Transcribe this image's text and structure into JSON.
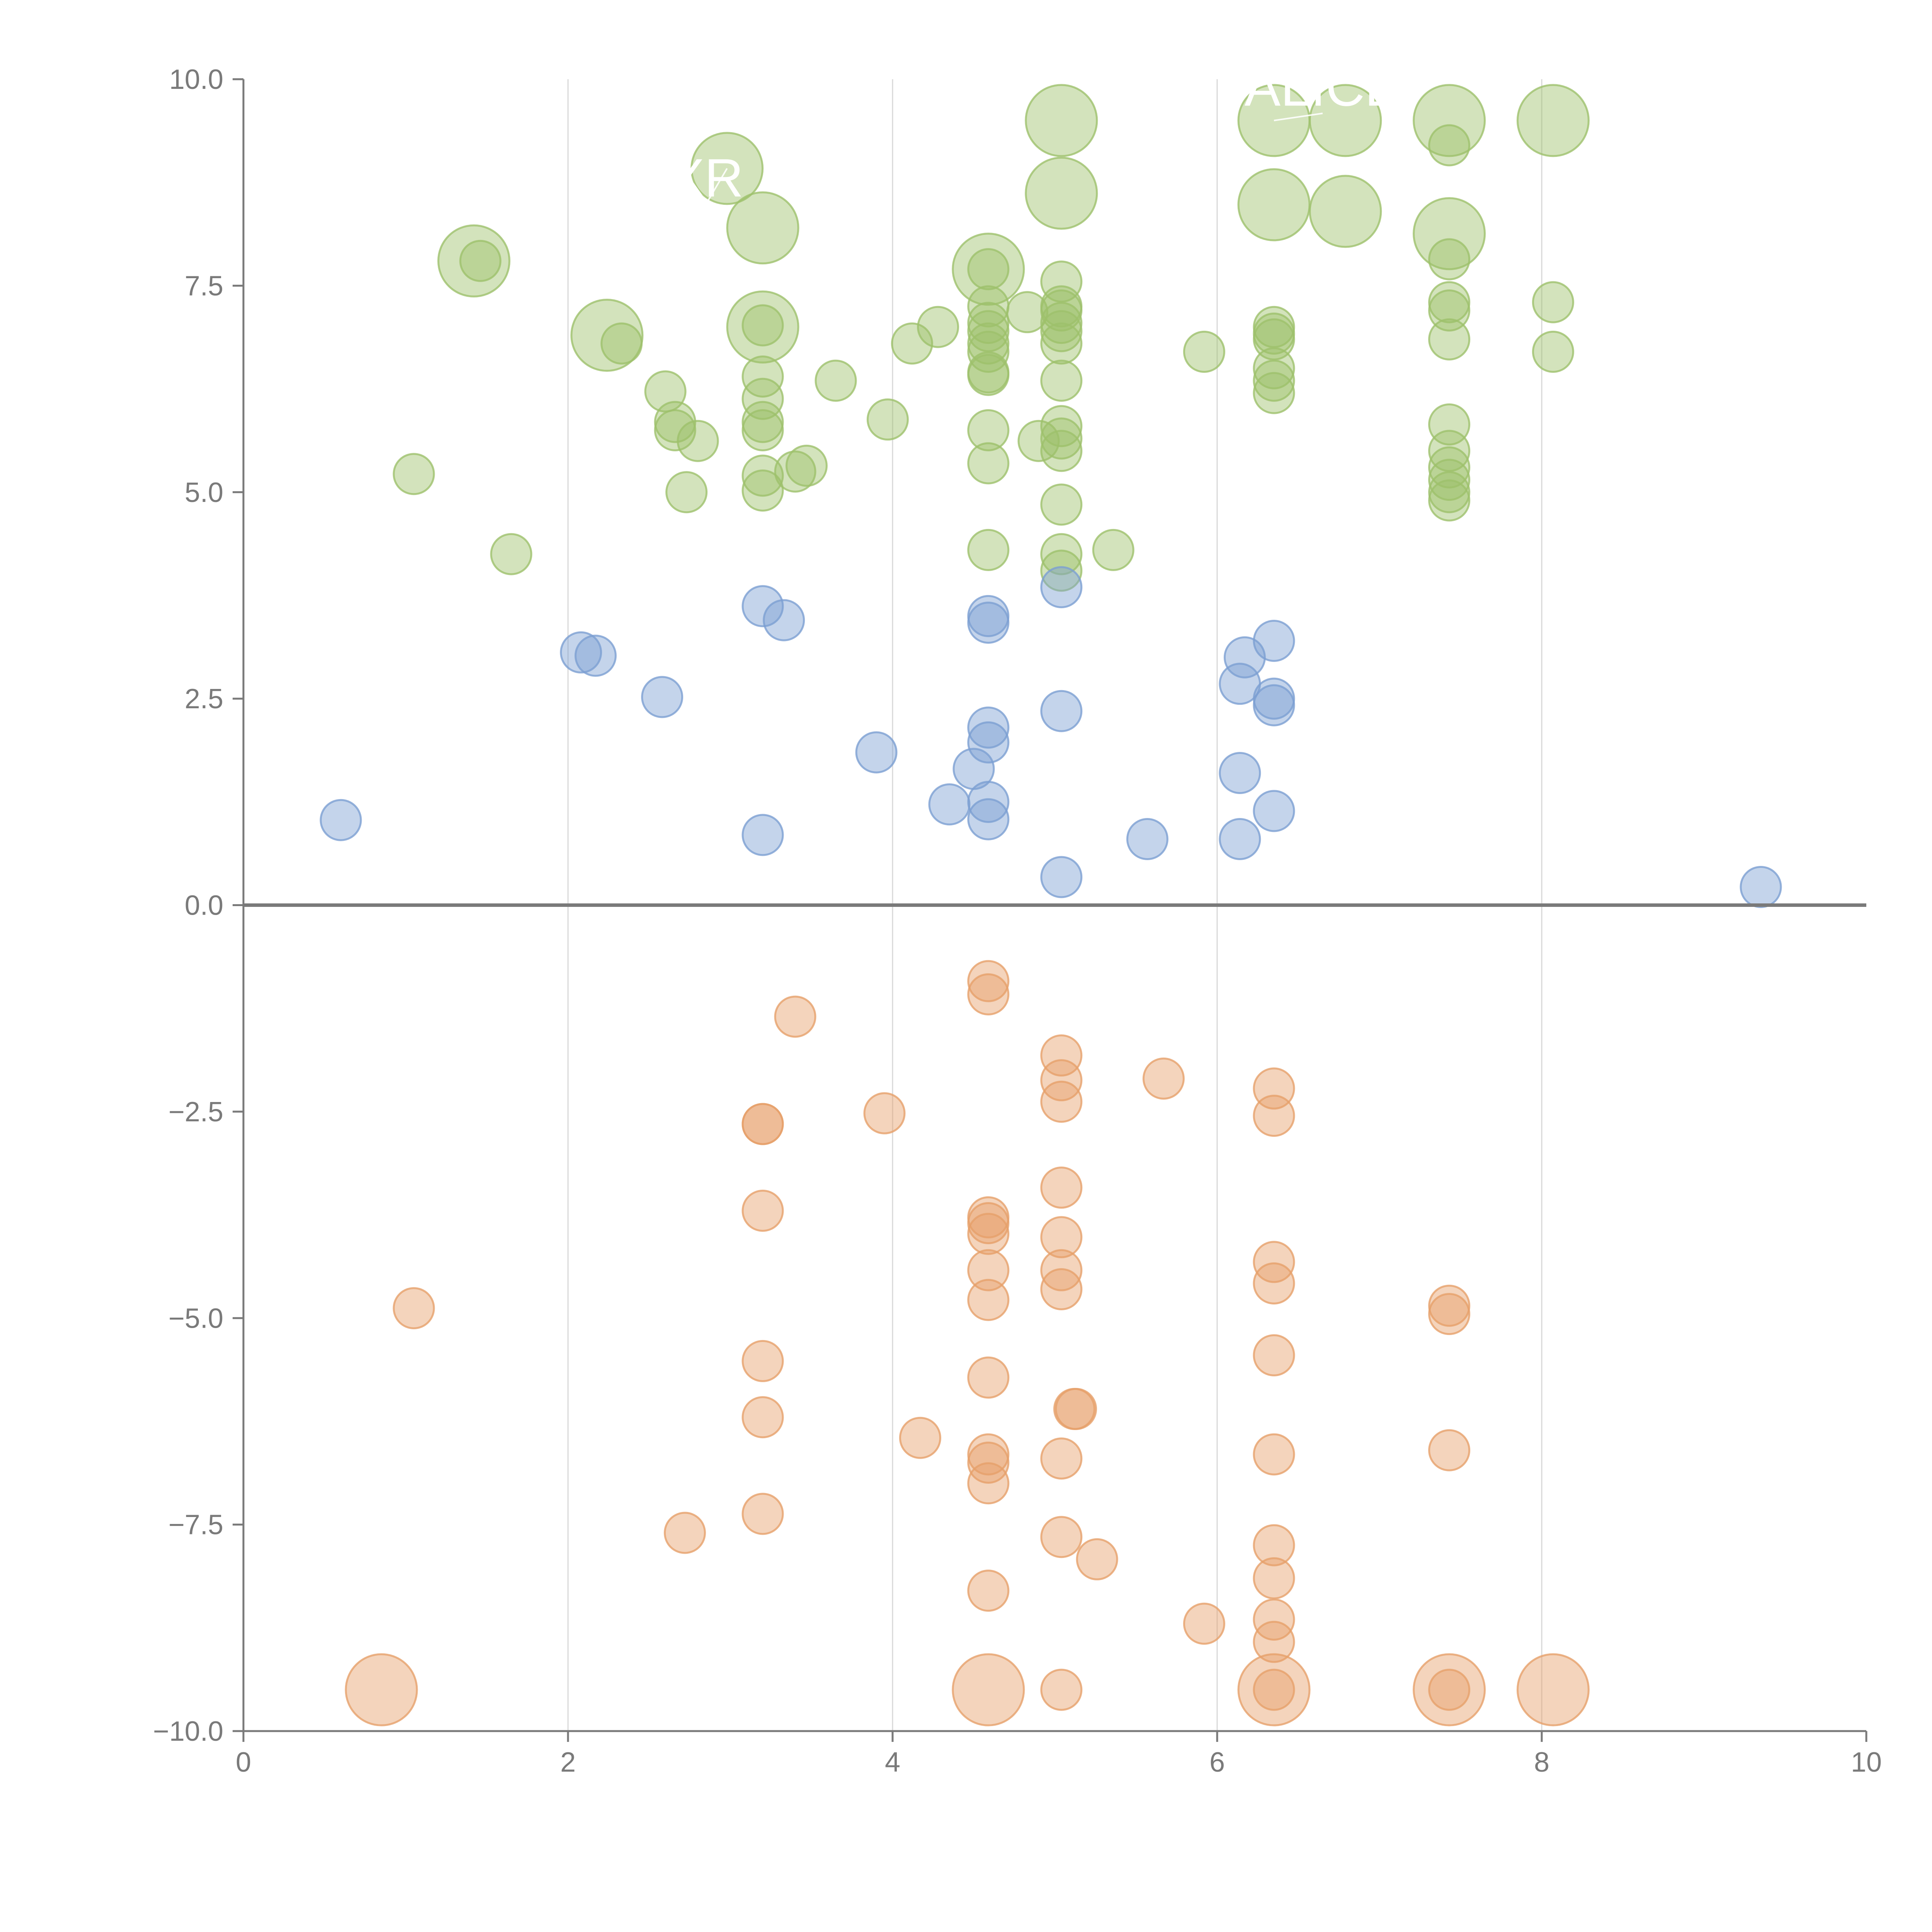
{
  "chart_data": {
    "type": "scatter",
    "title": "",
    "xlabel": "",
    "ylabel": "",
    "xlim": [
      0,
      10
    ],
    "ylim": [
      -10,
      10
    ],
    "x_ticks": [
      "0",
      "2",
      "4",
      "6",
      "8",
      "10"
    ],
    "y_ticks": [
      "−10.0",
      "−7.5",
      "−5.0",
      "−2.5",
      "0.0",
      "2.5",
      "5.0",
      "7.5",
      "10.0"
    ],
    "grid": "vertical",
    "colors": {
      "green": "#9dc16b",
      "blue": "#7c9fd2",
      "orange": "#e6a06a",
      "axis": "#7a7a7a"
    },
    "series": [
      {
        "name": "green",
        "color": "#9dc16b",
        "points": [
          [
            1.05,
            5.22,
            1
          ],
          [
            1.42,
            7.8,
            3
          ],
          [
            1.46,
            7.8,
            1
          ],
          [
            1.65,
            4.25,
            1
          ],
          [
            2.24,
            6.9,
            3
          ],
          [
            2.33,
            6.8,
            1
          ],
          [
            2.6,
            6.22,
            1
          ],
          [
            2.66,
            5.85,
            1
          ],
          [
            2.66,
            5.75,
            1
          ],
          [
            2.73,
            5.0,
            1
          ],
          [
            2.8,
            5.62,
            1
          ],
          [
            2.98,
            8.92,
            3
          ],
          [
            3.2,
            8.2,
            3
          ],
          [
            3.2,
            7.0,
            3
          ],
          [
            3.2,
            7.02,
            1
          ],
          [
            3.2,
            6.4,
            1
          ],
          [
            3.2,
            6.13,
            1
          ],
          [
            3.2,
            5.85,
            1
          ],
          [
            3.2,
            5.75,
            1
          ],
          [
            3.2,
            5.2,
            1
          ],
          [
            3.2,
            5.02,
            1
          ],
          [
            3.4,
            5.25,
            1
          ],
          [
            3.47,
            5.32,
            1
          ],
          [
            3.65,
            6.35,
            1
          ],
          [
            3.97,
            5.88,
            1
          ],
          [
            4.12,
            6.8,
            1
          ],
          [
            4.28,
            7.0,
            1
          ],
          [
            4.59,
            7.7,
            3
          ],
          [
            4.59,
            7.7,
            1
          ],
          [
            4.59,
            7.25,
            1
          ],
          [
            4.59,
            7.05,
            1
          ],
          [
            4.59,
            6.95,
            1
          ],
          [
            4.59,
            6.8,
            1
          ],
          [
            4.59,
            6.7,
            1
          ],
          [
            4.59,
            6.45,
            1
          ],
          [
            4.59,
            6.42,
            1
          ],
          [
            4.59,
            5.75,
            1
          ],
          [
            4.59,
            5.35,
            1
          ],
          [
            4.59,
            4.3,
            1
          ],
          [
            4.83,
            7.18,
            1
          ],
          [
            4.9,
            5.62,
            1
          ],
          [
            5.04,
            9.5,
            3
          ],
          [
            5.04,
            8.62,
            3
          ],
          [
            5.04,
            7.55,
            1
          ],
          [
            5.04,
            7.25,
            1
          ],
          [
            5.04,
            7.2,
            1
          ],
          [
            5.04,
            7.05,
            1
          ],
          [
            5.04,
            6.95,
            1
          ],
          [
            5.04,
            6.8,
            1
          ],
          [
            5.04,
            6.35,
            1
          ],
          [
            5.04,
            5.8,
            1
          ],
          [
            5.04,
            5.65,
            1
          ],
          [
            5.04,
            5.5,
            1
          ],
          [
            5.04,
            4.85,
            1
          ],
          [
            5.04,
            4.25,
            1
          ],
          [
            5.04,
            4.05,
            1
          ],
          [
            5.36,
            4.3,
            1
          ],
          [
            5.92,
            6.7,
            1
          ],
          [
            6.35,
            9.5,
            3
          ],
          [
            6.35,
            8.48,
            3
          ],
          [
            6.35,
            7.0,
            1
          ],
          [
            6.35,
            6.92,
            1
          ],
          [
            6.35,
            6.85,
            1
          ],
          [
            6.35,
            6.5,
            1
          ],
          [
            6.35,
            6.35,
            1
          ],
          [
            6.35,
            6.2,
            1
          ],
          [
            6.79,
            9.5,
            3
          ],
          [
            6.79,
            8.4,
            3
          ],
          [
            7.43,
            9.5,
            3
          ],
          [
            7.43,
            9.2,
            1
          ],
          [
            7.43,
            8.13,
            3
          ],
          [
            7.43,
            7.82,
            1
          ],
          [
            7.43,
            7.3,
            1
          ],
          [
            7.43,
            7.2,
            1
          ],
          [
            7.43,
            6.85,
            1
          ],
          [
            7.43,
            5.82,
            1
          ],
          [
            7.43,
            5.5,
            1
          ],
          [
            7.43,
            5.3,
            1
          ],
          [
            7.43,
            5.15,
            1
          ],
          [
            7.43,
            5.0,
            1
          ],
          [
            7.43,
            4.9,
            1
          ],
          [
            8.07,
            9.5,
            3
          ],
          [
            8.07,
            7.3,
            1
          ],
          [
            8.07,
            6.7,
            1
          ]
        ]
      },
      {
        "name": "blue",
        "color": "#7c9fd2",
        "points": [
          [
            0.6,
            1.03,
            1
          ],
          [
            2.08,
            3.06,
            1
          ],
          [
            2.17,
            3.02,
            1
          ],
          [
            2.58,
            2.52,
            1
          ],
          [
            3.2,
            3.62,
            1
          ],
          [
            3.2,
            0.85,
            1
          ],
          [
            3.33,
            3.45,
            1
          ],
          [
            3.9,
            1.85,
            1
          ],
          [
            4.35,
            1.22,
            1
          ],
          [
            4.5,
            1.65,
            1
          ],
          [
            4.59,
            3.5,
            1
          ],
          [
            4.59,
            3.42,
            1
          ],
          [
            4.59,
            2.15,
            1
          ],
          [
            4.59,
            1.97,
            1
          ],
          [
            4.59,
            1.25,
            1
          ],
          [
            4.59,
            1.04,
            1
          ],
          [
            5.04,
            3.85,
            1
          ],
          [
            5.04,
            2.35,
            1
          ],
          [
            5.04,
            0.34,
            1
          ],
          [
            5.57,
            0.8,
            1
          ],
          [
            6.14,
            2.68,
            1
          ],
          [
            6.14,
            1.6,
            1
          ],
          [
            6.14,
            0.8,
            1
          ],
          [
            6.17,
            3.0,
            1
          ],
          [
            6.35,
            3.2,
            1
          ],
          [
            6.35,
            2.5,
            1
          ],
          [
            6.35,
            2.42,
            1
          ],
          [
            6.35,
            1.14,
            1
          ],
          [
            9.35,
            0.22,
            1
          ]
        ]
      },
      {
        "name": "orange",
        "color": "#e6a06a",
        "points": [
          [
            0.85,
            -9.5,
            3
          ],
          [
            1.05,
            -4.88,
            1
          ],
          [
            2.72,
            -7.6,
            1
          ],
          [
            3.2,
            -2.65,
            1
          ],
          [
            3.2,
            -2.65,
            1
          ],
          [
            3.2,
            -3.7,
            1
          ],
          [
            3.2,
            -5.52,
            1
          ],
          [
            3.2,
            -6.2,
            1
          ],
          [
            3.2,
            -7.37,
            1
          ],
          [
            3.4,
            -1.35,
            1
          ],
          [
            3.95,
            -2.52,
            1
          ],
          [
            4.17,
            -6.45,
            1
          ],
          [
            4.59,
            -0.92,
            1
          ],
          [
            4.59,
            -1.08,
            1
          ],
          [
            4.59,
            -3.78,
            1
          ],
          [
            4.59,
            -3.85,
            1
          ],
          [
            4.59,
            -3.98,
            1
          ],
          [
            4.59,
            -4.42,
            1
          ],
          [
            4.59,
            -4.78,
            1
          ],
          [
            4.59,
            -5.72,
            1
          ],
          [
            4.59,
            -6.65,
            1
          ],
          [
            4.59,
            -6.75,
            1
          ],
          [
            4.59,
            -7.0,
            1
          ],
          [
            4.59,
            -8.3,
            1
          ],
          [
            4.59,
            -9.5,
            3
          ],
          [
            5.04,
            -1.82,
            1
          ],
          [
            5.04,
            -2.12,
            1
          ],
          [
            5.04,
            -2.38,
            1
          ],
          [
            5.04,
            -3.42,
            1
          ],
          [
            5.04,
            -4.02,
            1
          ],
          [
            5.04,
            -4.42,
            1
          ],
          [
            5.04,
            -4.65,
            1
          ],
          [
            5.04,
            -6.7,
            1
          ],
          [
            5.04,
            -7.65,
            1
          ],
          [
            5.04,
            -9.5,
            1
          ],
          [
            5.12,
            -6.1,
            1
          ],
          [
            5.13,
            -6.1,
            1
          ],
          [
            5.26,
            -7.92,
            1
          ],
          [
            5.67,
            -2.1,
            1
          ],
          [
            5.92,
            -8.7,
            1
          ],
          [
            6.35,
            -2.22,
            1
          ],
          [
            6.35,
            -2.55,
            1
          ],
          [
            6.35,
            -4.32,
            1
          ],
          [
            6.35,
            -4.58,
            1
          ],
          [
            6.35,
            -5.45,
            1
          ],
          [
            6.35,
            -6.65,
            1
          ],
          [
            6.35,
            -7.75,
            1
          ],
          [
            6.35,
            -8.15,
            1
          ],
          [
            6.35,
            -8.65,
            1
          ],
          [
            6.35,
            -8.92,
            1
          ],
          [
            6.35,
            -9.5,
            3
          ],
          [
            6.35,
            -9.5,
            1
          ],
          [
            7.43,
            -4.85,
            1
          ],
          [
            7.43,
            -4.95,
            1
          ],
          [
            7.43,
            -6.6,
            1
          ],
          [
            7.43,
            -9.5,
            3
          ],
          [
            7.43,
            -9.5,
            1
          ],
          [
            8.07,
            -9.5,
            3
          ]
        ]
      }
    ],
    "annotations": [
      {
        "text": "ALICE",
        "x": 6.65,
        "y": 9.68,
        "target_x": 6.35,
        "target_y": 9.5
      },
      {
        "text": "XR",
        "x": 2.85,
        "y": 8.58,
        "target_x": 2.98,
        "target_y": 8.92
      }
    ]
  }
}
